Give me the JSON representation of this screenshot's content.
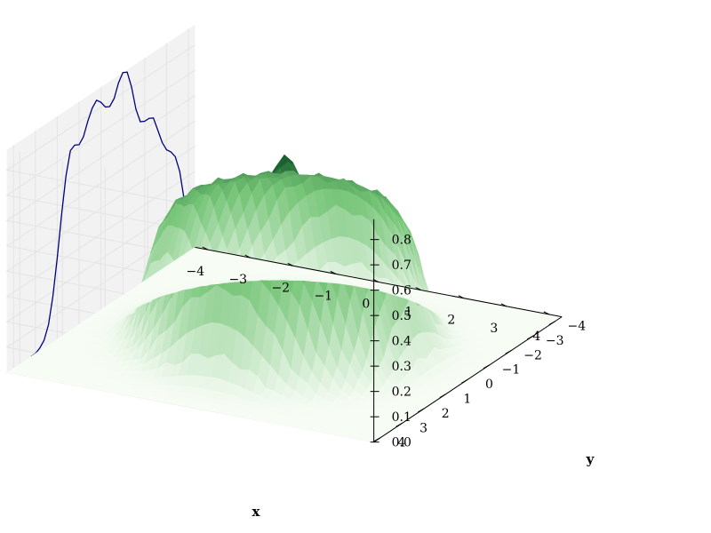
{
  "chart_data": {
    "type": "surface",
    "title": "",
    "xlabel": "x",
    "ylabel": "y",
    "zlabel": "",
    "x_ticks": [
      "−4",
      "−3",
      "−2",
      "−1",
      "0",
      "1",
      "2",
      "3",
      "4"
    ],
    "y_ticks": [
      "−4",
      "−3",
      "−2",
      "−1",
      "0",
      "1",
      "2",
      "3",
      "4"
    ],
    "z_ticks": [
      "0.0",
      "0.1",
      "0.2",
      "0.3",
      "0.4",
      "0.5",
      "0.6",
      "0.7",
      "0.8"
    ],
    "xlim": [
      -4.3,
      4.3
    ],
    "ylim": [
      -4.3,
      4.3
    ],
    "zlim": [
      0,
      0.88
    ],
    "grid": true,
    "colormap": "Greens",
    "surface": {
      "description": "radially symmetric plateau: z ~ 0.55 for r < 2.3, smooth falloff to 0 by r ~ 3.5, sharp central peak ~0.75 at origin",
      "plateau_height": 0.55,
      "plateau_radius": 2.3,
      "falloff_width": 0.6,
      "center_peak_height": 0.75
    },
    "projection_line": {
      "plane": "x = -4.3 (back wall)",
      "color": "#000080",
      "y": [
        -4.2,
        -4.0,
        -3.8,
        -3.6,
        -3.4,
        -3.2,
        -3.0,
        -2.8,
        -2.6,
        -2.4,
        -2.2,
        -2.0,
        -1.8,
        -1.6,
        -1.4,
        -1.2,
        -1.0,
        -0.8,
        -0.6,
        -0.4,
        -0.2,
        0.0,
        0.2,
        0.4,
        0.6,
        0.8,
        1.0,
        1.2,
        1.4,
        1.6,
        1.8,
        2.0,
        2.2,
        2.4,
        2.6,
        2.8,
        3.0,
        3.2
      ],
      "z": [
        0.0,
        0.08,
        0.22,
        0.34,
        0.41,
        0.44,
        0.46,
        0.5,
        0.56,
        0.62,
        0.63,
        0.63,
        0.64,
        0.7,
        0.8,
        0.87,
        0.88,
        0.85,
        0.8,
        0.78,
        0.79,
        0.82,
        0.84,
        0.82,
        0.78,
        0.73,
        0.71,
        0.72,
        0.71,
        0.62,
        0.48,
        0.32,
        0.18,
        0.08,
        0.03,
        0.01,
        0.0,
        0.0
      ]
    }
  },
  "colors": {
    "pane": "#f2f2f2",
    "grid": "#e4e4e4",
    "surface_low": "#f7fcf5",
    "surface_high": "#00441b",
    "line": "#000080"
  }
}
